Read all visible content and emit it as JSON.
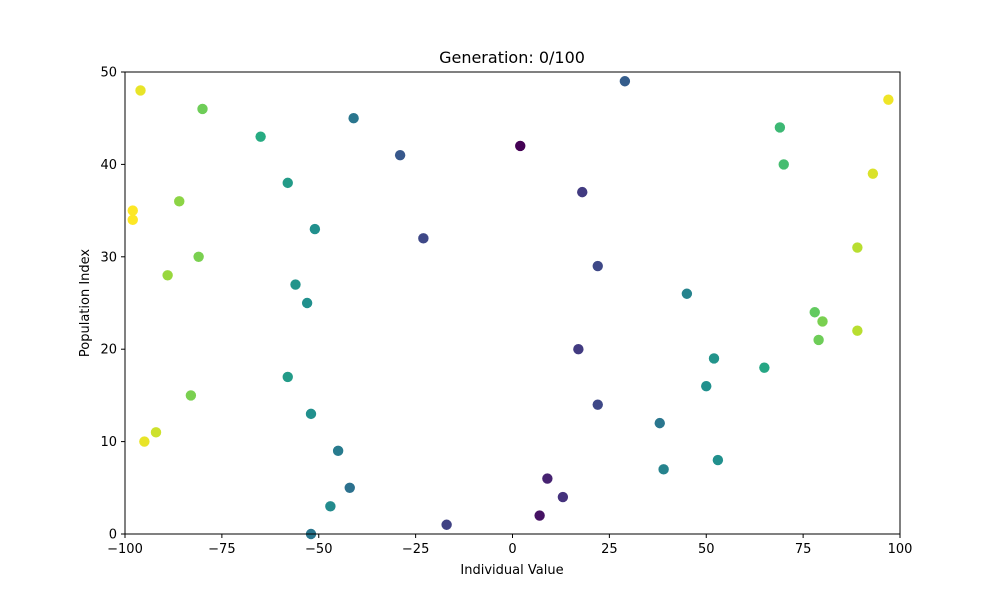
{
  "chart_data": {
    "type": "scatter",
    "title": "Generation: 0/100",
    "xlabel": "Individual Value",
    "ylabel": "Population Index",
    "xlim": [
      -100,
      100
    ],
    "ylim": [
      0,
      50
    ],
    "xticks": [
      -100,
      -75,
      -50,
      -25,
      0,
      25,
      50,
      75,
      100
    ],
    "yticks": [
      0,
      10,
      20,
      30,
      40,
      50
    ],
    "grid": false,
    "colormap": "viridis",
    "points": [
      {
        "x": -52,
        "y": 0,
        "c": 0.4
      },
      {
        "x": -17,
        "y": 1,
        "c": 0.2
      },
      {
        "x": 7,
        "y": 2,
        "c": 0.05
      },
      {
        "x": -47,
        "y": 3,
        "c": 0.48
      },
      {
        "x": 13,
        "y": 4,
        "c": 0.15
      },
      {
        "x": -42,
        "y": 5,
        "c": 0.38
      },
      {
        "x": 9,
        "y": 6,
        "c": 0.1
      },
      {
        "x": 39,
        "y": 7,
        "c": 0.45
      },
      {
        "x": 53,
        "y": 8,
        "c": 0.5
      },
      {
        "x": -45,
        "y": 9,
        "c": 0.42
      },
      {
        "x": -95,
        "y": 10,
        "c": 0.97
      },
      {
        "x": -92,
        "y": 11,
        "c": 0.93
      },
      {
        "x": 38,
        "y": 12,
        "c": 0.4
      },
      {
        "x": -52,
        "y": 13,
        "c": 0.5
      },
      {
        "x": 22,
        "y": 14,
        "c": 0.22
      },
      {
        "x": -83,
        "y": 15,
        "c": 0.8
      },
      {
        "x": 50,
        "y": 16,
        "c": 0.5
      },
      {
        "x": -58,
        "y": 17,
        "c": 0.55
      },
      {
        "x": 65,
        "y": 18,
        "c": 0.6
      },
      {
        "x": 52,
        "y": 19,
        "c": 0.52
      },
      {
        "x": 17,
        "y": 20,
        "c": 0.18
      },
      {
        "x": 79,
        "y": 21,
        "c": 0.78
      },
      {
        "x": 89,
        "y": 22,
        "c": 0.9
      },
      {
        "x": 80,
        "y": 23,
        "c": 0.8
      },
      {
        "x": 78,
        "y": 24,
        "c": 0.76
      },
      {
        "x": -53,
        "y": 25,
        "c": 0.5
      },
      {
        "x": 45,
        "y": 26,
        "c": 0.45
      },
      {
        "x": -56,
        "y": 27,
        "c": 0.52
      },
      {
        "x": -89,
        "y": 28,
        "c": 0.85
      },
      {
        "x": 22,
        "y": 29,
        "c": 0.22
      },
      {
        "x": -81,
        "y": 30,
        "c": 0.8
      },
      {
        "x": 89,
        "y": 31,
        "c": 0.9
      },
      {
        "x": -23,
        "y": 32,
        "c": 0.22
      },
      {
        "x": -51,
        "y": 33,
        "c": 0.5
      },
      {
        "x": -98,
        "y": 34,
        "c": 1.0
      },
      {
        "x": -98,
        "y": 35,
        "c": 1.0
      },
      {
        "x": -86,
        "y": 36,
        "c": 0.83
      },
      {
        "x": 18,
        "y": 37,
        "c": 0.18
      },
      {
        "x": -58,
        "y": 38,
        "c": 0.55
      },
      {
        "x": 93,
        "y": 39,
        "c": 0.95
      },
      {
        "x": 70,
        "y": 40,
        "c": 0.7
      },
      {
        "x": -29,
        "y": 41,
        "c": 0.28
      },
      {
        "x": 2,
        "y": 42,
        "c": 0.0
      },
      {
        "x": -65,
        "y": 43,
        "c": 0.62
      },
      {
        "x": 69,
        "y": 44,
        "c": 0.68
      },
      {
        "x": -41,
        "y": 45,
        "c": 0.4
      },
      {
        "x": -80,
        "y": 46,
        "c": 0.78
      },
      {
        "x": 97,
        "y": 47,
        "c": 0.98
      },
      {
        "x": -96,
        "y": 48,
        "c": 0.97
      },
      {
        "x": 29,
        "y": 49,
        "c": 0.3
      }
    ]
  }
}
